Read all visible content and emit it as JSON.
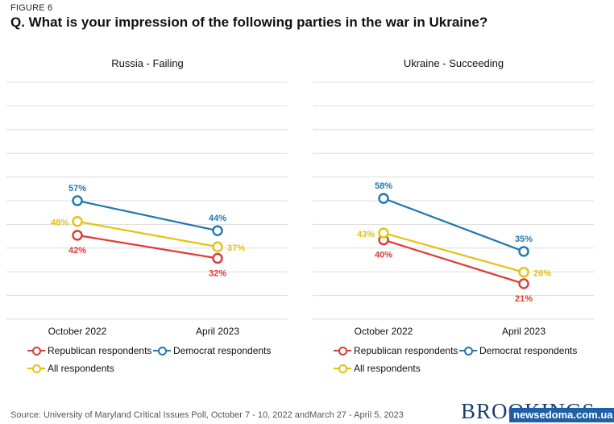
{
  "figure_label": "FIGURE 6",
  "title": "Q. What is your impression of the following parties in the war in Ukraine?",
  "source_label": "Source:",
  "source_text": "University of Maryland Critical Issues Poll, October 7 - 10, 2022 andMarch 27 - April 5, 2023",
  "logo_text": "BROOKINGS",
  "watermark_text": "newsedoma.com.ua",
  "colors": {
    "republican": "#e03a34",
    "democrat": "#1f77b4",
    "all": "#e6c20c",
    "grid": "#dddddd"
  },
  "chart_data": [
    {
      "type": "line",
      "title": "Russia - Failing",
      "categories": [
        "October 2022",
        "April 2023"
      ],
      "ylim": [
        0,
        100
      ],
      "grid": true,
      "legend_placement": "bottom",
      "series": [
        {
          "name": "Republican respondents",
          "key": "republican",
          "values": [
            42,
            32
          ],
          "labels": [
            "42%",
            "32%"
          ]
        },
        {
          "name": "Democrat respondents",
          "key": "democrat",
          "values": [
            57,
            44
          ],
          "labels": [
            "57%",
            "44%"
          ]
        },
        {
          "name": "All respondents",
          "key": "all",
          "values": [
            48,
            37
          ],
          "labels": [
            "48%",
            "37%"
          ]
        }
      ]
    },
    {
      "type": "line",
      "title": "Ukraine - Succeeding",
      "categories": [
        "October 2022",
        "April 2023"
      ],
      "ylim": [
        0,
        100
      ],
      "grid": true,
      "legend_placement": "bottom",
      "series": [
        {
          "name": "Republican respondents",
          "key": "republican",
          "values": [
            40,
            21
          ],
          "labels": [
            "40%",
            "21%"
          ]
        },
        {
          "name": "Democrat respondents",
          "key": "democrat",
          "values": [
            58,
            35
          ],
          "labels": [
            "58%",
            "35%"
          ]
        },
        {
          "name": "All respondents",
          "key": "all",
          "values": [
            43,
            26
          ],
          "labels": [
            "43%",
            "26%"
          ]
        }
      ]
    }
  ]
}
